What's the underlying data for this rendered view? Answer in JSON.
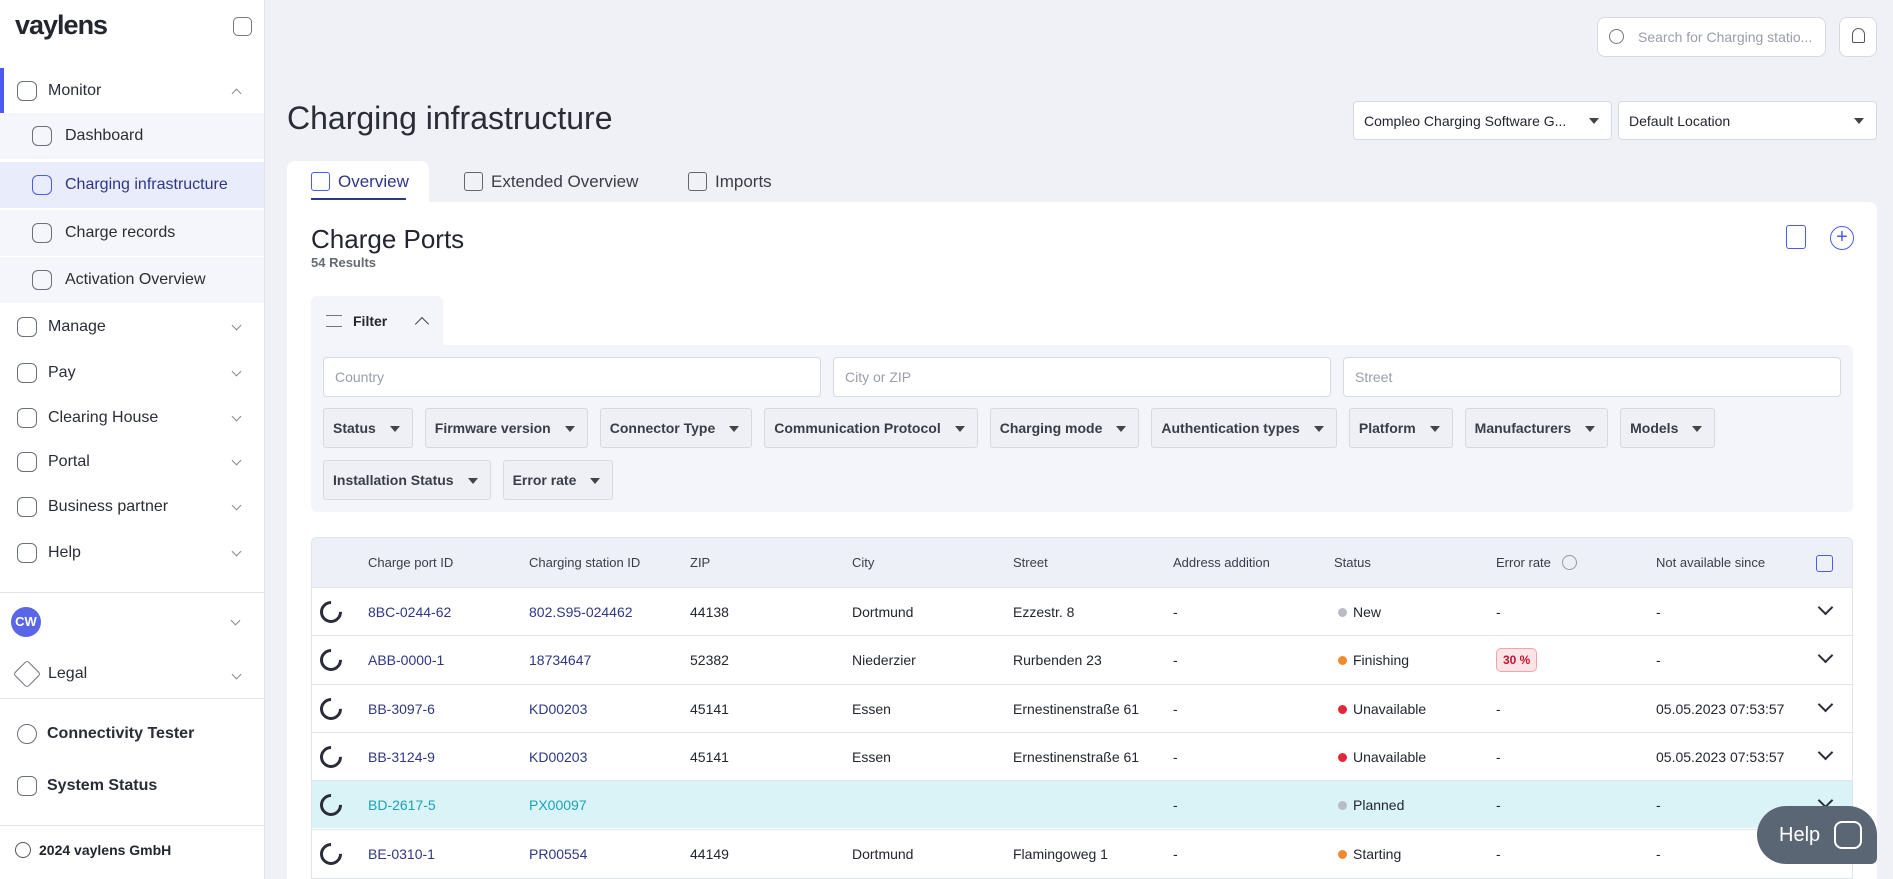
{
  "sidebar": {
    "logo": "vaylens",
    "nav": [
      "Monitor",
      "Dashboard",
      "Charging infrastructure",
      "Charge records",
      "Activation Overview",
      "Manage",
      "Pay",
      "Clearing House",
      "Portal",
      "Business partner",
      "Help"
    ],
    "user_initials": "CW",
    "legal": "Legal",
    "tools": [
      "Connectivity Tester",
      "System Status"
    ],
    "footer": "2024 vaylens GmbH"
  },
  "header": {
    "search_placeholder": "Search for Charging statio..."
  },
  "page": {
    "title": "Charging infrastructure",
    "selects": [
      "Compleo Charging Software G...",
      "Default Location"
    ],
    "tabs": [
      "Overview",
      "Extended Overview",
      "Imports"
    ]
  },
  "panel": {
    "title": "Charge Ports",
    "results": "54 Results",
    "filter_label": "Filter",
    "inputs": [
      "Country",
      "City or ZIP",
      "Street"
    ],
    "dropdowns": [
      "Status",
      "Firmware version",
      "Connector Type",
      "Communication Protocol",
      "Charging mode",
      "Authentication types",
      "Platform",
      "Manufacturers",
      "Models",
      "Installation Status",
      "Error rate"
    ]
  },
  "table": {
    "columns": [
      "Charge port ID",
      "Charging station ID",
      "ZIP",
      "City",
      "Street",
      "Address addition",
      "Status",
      "Error rate",
      "Not available since"
    ],
    "rows": [
      [
        "8BC-0244-62",
        "802.S95-024462",
        "44138",
        "Dortmund",
        "Ezzestr. 8",
        "-",
        "New",
        "-",
        "-"
      ],
      [
        "ABB-0000-1",
        "18734647",
        "52382",
        "Niederzier",
        "Rurbenden 23",
        "-",
        "Finishing",
        "30 %",
        "-"
      ],
      [
        "BB-3097-6",
        "KD00203",
        "45141",
        "Essen",
        "Ernestinenstraße 61",
        "-",
        "Unavailable",
        "-",
        "05.05.2023 07:53:57"
      ],
      [
        "BB-3124-9",
        "KD00203",
        "45141",
        "Essen",
        "Ernestinenstraße 61",
        "-",
        "Unavailable",
        "-",
        "05.05.2023 07:53:57"
      ],
      [
        "BD-2617-5",
        "PX00097",
        null,
        null,
        null,
        "-",
        "Planned",
        "-",
        "-"
      ],
      [
        "BE-0310-1",
        "PR00554",
        "44149",
        "Dortmund",
        "Flamingoweg 1",
        "-",
        "Starting",
        "-",
        "-"
      ]
    ],
    "status_colors": [
      "#b9bcc4",
      "#f08a2c",
      "#e3263a",
      "#e3263a",
      "#b9bcc4",
      "#f08a2c"
    ],
    "highlighted_row": 4
  },
  "help_button": "Help"
}
